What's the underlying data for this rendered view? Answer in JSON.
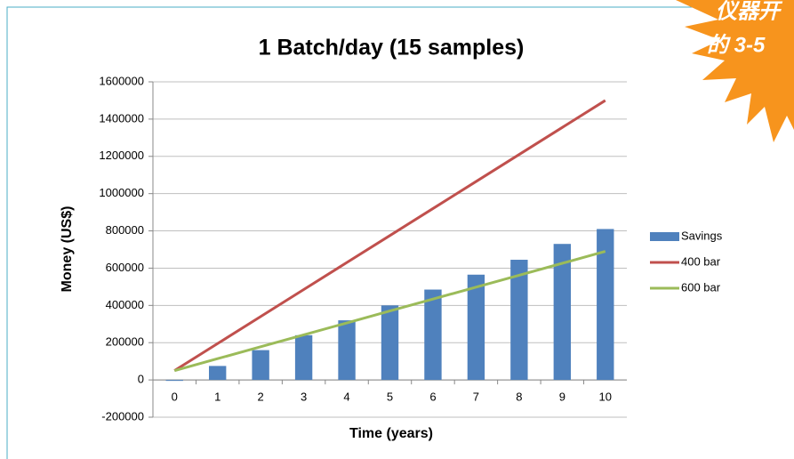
{
  "chart_data": {
    "type": "bar",
    "title": "1 Batch/day (15 samples)",
    "x_label": "Time (years)",
    "y_label": "Money (US$)",
    "categories": [
      "0",
      "1",
      "2",
      "3",
      "4",
      "5",
      "6",
      "7",
      "8",
      "9",
      "10"
    ],
    "series": [
      {
        "name": "Savings",
        "type": "bar",
        "color": "#4f81bd",
        "values": [
          -5000,
          75000,
          160000,
          240000,
          320000,
          400000,
          485000,
          565000,
          645000,
          730000,
          810000
        ]
      },
      {
        "name": "400 bar",
        "type": "line",
        "color": "#c0504d",
        "values": [
          50000,
          195000,
          340000,
          485000,
          630000,
          775000,
          920000,
          1065000,
          1210000,
          1355000,
          1500000
        ]
      },
      {
        "name": "600 bar",
        "type": "line",
        "color": "#9bbb59",
        "values": [
          50000,
          114000,
          178000,
          242000,
          306000,
          370000,
          434000,
          498000,
          562000,
          626000,
          690000
        ]
      }
    ],
    "ylim": [
      -200000,
      1600000
    ],
    "yticks": [
      -200000,
      0,
      200000,
      400000,
      600000,
      800000,
      1000000,
      1200000,
      1400000,
      1600000
    ],
    "grid": true,
    "legend": "right"
  },
  "badge": {
    "line1": "仪器开",
    "line2": "的 3-5"
  }
}
